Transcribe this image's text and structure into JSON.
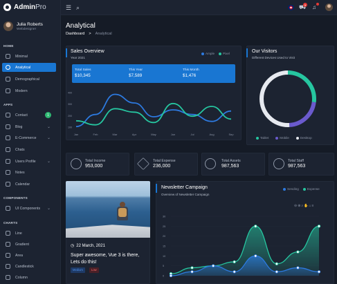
{
  "app": {
    "brand_main": "Admin",
    "brand_sub": "Pro"
  },
  "profile": {
    "name": "Julia Roberts",
    "role": "Webdesigner"
  },
  "sidebar": {
    "sections": [
      "HOME",
      "APPS",
      "COMPONENTS",
      "CHARTS"
    ],
    "items": [
      {
        "label": "Minimal"
      },
      {
        "label": "Analytical"
      },
      {
        "label": "Demographical"
      },
      {
        "label": "Modern"
      },
      {
        "label": "Contact",
        "badge": "1"
      },
      {
        "label": "Blog"
      },
      {
        "label": "E-Commerce"
      },
      {
        "label": "Chats"
      },
      {
        "label": "Users Profile"
      },
      {
        "label": "Notes"
      },
      {
        "label": "Calendar"
      },
      {
        "label": "UI Components"
      },
      {
        "label": "Line"
      },
      {
        "label": "Gradient"
      },
      {
        "label": "Area"
      },
      {
        "label": "Candlestick"
      },
      {
        "label": "Column"
      }
    ]
  },
  "topbar": {
    "cart_badge": "5"
  },
  "page": {
    "title": "Analytical",
    "breadcrumb_root": "Dashboard",
    "breadcrumb_sep": ">",
    "breadcrumb_current": "Analytical"
  },
  "sales": {
    "title": "Sales Overview",
    "subtitle": "Year 2021",
    "legend": [
      "Ample",
      "Pixel"
    ],
    "stats": [
      {
        "label": "Total Sales",
        "value": "$10,345"
      },
      {
        "label": "This Year",
        "value": "$7,589"
      },
      {
        "label": "This Month",
        "value": "$1,476"
      }
    ]
  },
  "visitors": {
    "title": "Our Visitors",
    "subtitle": "Different Devices Used to Visit",
    "legend": [
      "Tablet",
      "Mobile",
      "Desktop"
    ]
  },
  "kpis": [
    {
      "label": "Total Income",
      "value": "953,000"
    },
    {
      "label": "Total Expense",
      "value": "236,000"
    },
    {
      "label": "Total Assets",
      "value": "987,563"
    },
    {
      "label": "Total Staff",
      "value": "987,563"
    }
  ],
  "blog_post": {
    "date": "22 March, 2021",
    "title": "Super awesome, Vue 3 is there, Lets do this!",
    "tags": [
      "Medium",
      "Low"
    ]
  },
  "newsletter": {
    "title": "Newsletter Campaign",
    "subtitle": "Overview of Newsletter Campaign",
    "legend": [
      "Sending",
      "Expense"
    ]
  },
  "colors": {
    "primary": "#1976d2",
    "teal": "#26c6a0",
    "blue_line": "#2d7ae0",
    "purple": "#6a5acd",
    "green_badge": "#2eb872",
    "red_badge": "#e53935"
  },
  "chart_data": [
    {
      "type": "line",
      "title": "Sales Overview",
      "x": [
        "Jan",
        "Feb",
        "Mar",
        "Apr",
        "May",
        "Jun",
        "Jul",
        "Aug",
        "Sep"
      ],
      "ylim": [
        100,
        400
      ],
      "yticks": [
        "100",
        "200",
        "300",
        "400"
      ],
      "series": [
        {
          "name": "Ample",
          "values": [
            105,
            210,
            385,
            310,
            190,
            250,
            210,
            150,
            240
          ]
        },
        {
          "name": "Pixel",
          "values": [
            155,
            120,
            260,
            230,
            140,
            305,
            195,
            280,
            170
          ]
        }
      ]
    },
    {
      "type": "pie",
      "title": "Our Visitors",
      "categories": [
        "Tablet",
        "Mobile",
        "Desktop"
      ],
      "values": [
        27,
        22,
        51
      ],
      "colors": [
        "#26c6a0",
        "#6a5acd",
        "#e6e9ef"
      ]
    },
    {
      "type": "area",
      "title": "Newsletter Campaign",
      "ylim": [
        0,
        30
      ],
      "yticks": [
        "0",
        "5",
        "10",
        "15",
        "20",
        "25",
        "30"
      ],
      "series": [
        {
          "name": "Sending",
          "values": [
            0,
            2,
            5,
            2,
            10,
            2,
            4,
            2
          ]
        },
        {
          "name": "Expense",
          "values": [
            1,
            4,
            5,
            7,
            25,
            6,
            12,
            25
          ]
        }
      ]
    }
  ]
}
